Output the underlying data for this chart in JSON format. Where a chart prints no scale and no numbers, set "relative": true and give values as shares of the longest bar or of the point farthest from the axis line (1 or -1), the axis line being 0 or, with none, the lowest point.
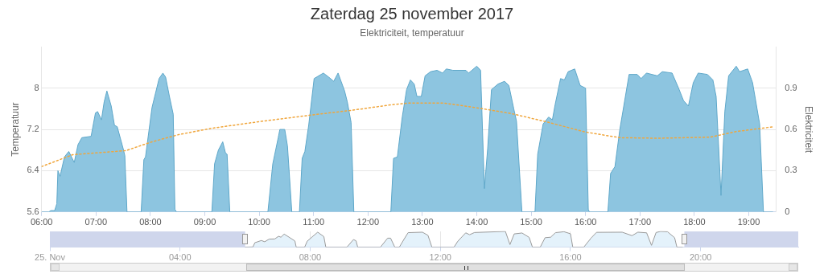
{
  "chart_data": [
    {
      "type": "area",
      "title": "Zaterdag 25 november 2017",
      "subtitle": "Elektriciteit, temperatuur",
      "ylabel": "Temperatuur",
      "y2label": "Elektriciteit",
      "xlim": [
        6,
        19.5
      ],
      "xticks": [
        {
          "value": 6,
          "label": "06:00"
        },
        {
          "value": 7,
          "label": "07:00"
        },
        {
          "value": 8,
          "label": "08:00"
        },
        {
          "value": 9,
          "label": "09:00"
        },
        {
          "value": 10,
          "label": "10:00"
        },
        {
          "value": 11,
          "label": "11:00"
        },
        {
          "value": 12,
          "label": "12:00"
        },
        {
          "value": 13,
          "label": "13:00"
        },
        {
          "value": 14,
          "label": "14:00"
        },
        {
          "value": 15,
          "label": "15:00"
        },
        {
          "value": 16,
          "label": "16:00"
        },
        {
          "value": 17,
          "label": "17:00"
        },
        {
          "value": 18,
          "label": "18:00"
        },
        {
          "value": 19,
          "label": "19:00"
        }
      ],
      "ylim": [
        5.6,
        8.8
      ],
      "yticks": [
        5.6,
        6.4,
        7.2,
        8
      ],
      "y2lim": [
        0,
        1.2
      ],
      "y2ticks": [
        0,
        0.3,
        0.6,
        0.9
      ],
      "grid": "y",
      "marker": "none",
      "series": [
        {
          "type": "area",
          "axis": "y2",
          "color": "#8dc5e0",
          "x": [
            6,
            6.13,
            6.17,
            6.24,
            6.28,
            6.3,
            6.34,
            6.42,
            6.5,
            6.6,
            6.67,
            6.74,
            6.91,
            6.99,
            7.03,
            7.1,
            7.15,
            7.2,
            7.28,
            7.34,
            7.39,
            7.5,
            7.53,
            7.57,
            7.83,
            7.88,
            7.91,
            8.03,
            8.16,
            8.23,
            8.28,
            8.35,
            8.42,
            8.45,
            8.48,
            9.13,
            9.18,
            9.25,
            9.33,
            9.38,
            9.41,
            9.46,
            10.16,
            10.25,
            10.35,
            10.38,
            10.47,
            10.52,
            10.6,
            10.74,
            10.79,
            10.84,
            10.91,
            11.01,
            11.18,
            11.28,
            11.37,
            11.45,
            11.57,
            11.62,
            11.69,
            11.74,
            12.42,
            12.47,
            12.54,
            12.63,
            12.71,
            12.78,
            12.85,
            12.9,
            12.98,
            13.05,
            13.15,
            13.27,
            13.37,
            13.44,
            13.56,
            13.8,
            13.85,
            14,
            14.07,
            14.14,
            14.2,
            14.27,
            14.39,
            14.51,
            14.59,
            14.68,
            14.73,
            14.83,
            15.07,
            15.12,
            15.22,
            15.32,
            15.39,
            15.44,
            15.54,
            15.61,
            15.68,
            15.8,
            15.9,
            16,
            16.05,
            16.07,
            16.41,
            16.46,
            16.54,
            16.63,
            16.8,
            16.95,
            17.02,
            17.12,
            17.32,
            17.41,
            17.59,
            17.71,
            17.8,
            17.89,
            17.98,
            18.07,
            18.24,
            18.34,
            18.4,
            18.49,
            18.56,
            18.63,
            18.77,
            18.83,
            18.98,
            19.07,
            19.2,
            19.27,
            19.44
          ],
          "values": [
            0,
            0,
            0.01,
            0.01,
            0.06,
            0.3,
            0.26,
            0.4,
            0.44,
            0.36,
            0.49,
            0.54,
            0.55,
            0.72,
            0.73,
            0.67,
            0.8,
            0.88,
            0.77,
            0.63,
            0.62,
            0.46,
            0.41,
            0,
            0,
            0.38,
            0.4,
            0.76,
            0.97,
            1.01,
            0.98,
            0.84,
            0.71,
            0.02,
            0,
            0,
            0.35,
            0.45,
            0.51,
            0.43,
            0.42,
            0,
            0,
            0.35,
            0.54,
            0.6,
            0.6,
            0.48,
            0,
            0,
            0.39,
            0.44,
            0.63,
            0.97,
            1.01,
            0.98,
            0.95,
            1.01,
            0.88,
            0.8,
            0.65,
            0,
            0,
            0.39,
            0.4,
            0.69,
            0.89,
            0.96,
            0.93,
            0.84,
            0.84,
            0.99,
            1.02,
            1.03,
            1.01,
            1.04,
            1.03,
            1.03,
            1.01,
            1.06,
            1.03,
            0.17,
            0.46,
            0.89,
            0.93,
            0.95,
            0.92,
            0.75,
            0.66,
            0,
            0,
            0.42,
            0.64,
            0.69,
            0.67,
            0.78,
            0.97,
            0.96,
            1.02,
            1.04,
            0.92,
            0.9,
            0.02,
            0,
            0,
            0.28,
            0.33,
            0.6,
            1,
            1,
            0.97,
            1.01,
            0.99,
            1.02,
            1.01,
            0.9,
            0.81,
            0.77,
            0.94,
            1.01,
            1,
            0.96,
            0.84,
            0.12,
            0.73,
            0.99,
            1.06,
            1.02,
            1.04,
            0.94,
            0.64,
            0,
            0
          ]
        },
        {
          "type": "line",
          "axis": "y",
          "color": "#f0a63c",
          "line_style": "dotted",
          "x": [
            6,
            6.57,
            7.55,
            8.03,
            8.52,
            9.11,
            9.99,
            10.96,
            11.69,
            12.44,
            12.72,
            12.93,
            13.41,
            14,
            14.63,
            15.27,
            16,
            16.63,
            17.32,
            18.29,
            18.77,
            19.44
          ],
          "values": [
            6.48,
            6.71,
            6.79,
            6.96,
            7.1,
            7.22,
            7.35,
            7.48,
            7.57,
            7.68,
            7.71,
            7.71,
            7.71,
            7.62,
            7.51,
            7.35,
            7.15,
            7.04,
            7.03,
            7.05,
            7.16,
            7.25
          ]
        }
      ]
    },
    {
      "type": "area",
      "relative": true,
      "tick_labels": "x",
      "grid": "x",
      "marker": "none",
      "xlim": [
        0,
        23
      ],
      "xticks": [
        {
          "value": 0,
          "label": "25. Nov"
        },
        {
          "value": 4,
          "label": "04:00"
        },
        {
          "value": 8,
          "label": "08:00"
        },
        {
          "value": 12,
          "label": "12:00"
        },
        {
          "value": 16,
          "label": "16:00"
        },
        {
          "value": 20,
          "label": "20:00"
        }
      ],
      "bands": [
        {
          "axis": "x",
          "from": 0,
          "to": 6,
          "color": "#cfd6ec"
        },
        {
          "axis": "x",
          "from": 19.5,
          "to": 23,
          "color": "#cfd6ec"
        }
      ],
      "series": [
        {
          "type": "area",
          "color": "#e4f2fb",
          "x": [
            6,
            6.24,
            6.3,
            6.5,
            6.6,
            6.74,
            6.91,
            7.03,
            7.1,
            7.2,
            7.39,
            7.53,
            7.57,
            7.83,
            7.91,
            8.23,
            8.42,
            8.48,
            9.13,
            9.33,
            9.41,
            9.46,
            10.16,
            10.38,
            10.47,
            10.6,
            10.74,
            10.91,
            11.01,
            11.45,
            11.62,
            11.74,
            12.42,
            12.54,
            12.78,
            12.9,
            13.05,
            14,
            14.14,
            14.27,
            14.51,
            14.73,
            14.83,
            15.07,
            15.22,
            15.39,
            15.54,
            15.8,
            16,
            16.07,
            16.41,
            16.63,
            16.8,
            17.59,
            17.89,
            18.07,
            18.34,
            18.49,
            18.63,
            18.77,
            18.98,
            19.2,
            19.27,
            19.44
          ],
          "values": [
            0,
            0.01,
            0.28,
            0.42,
            0.34,
            0.51,
            0.52,
            0.69,
            0.63,
            0.83,
            0.58,
            0.39,
            0,
            0,
            0.38,
            0.95,
            0.67,
            0,
            0,
            0.48,
            0.4,
            0,
            0,
            0.57,
            0.57,
            0,
            0,
            0.59,
            0.92,
            0.95,
            0.75,
            0,
            0,
            0.38,
            0.91,
            0.79,
            0.93,
            1,
            0.16,
            0.84,
            0.9,
            0.62,
            0,
            0,
            0.6,
            0.63,
            0.92,
            0.98,
            0.85,
            0,
            0,
            0.57,
            0.94,
            0.95,
            0.73,
            0.95,
            0.91,
            0.11,
            0.93,
            1,
            0.98,
            0.6,
            0,
            0
          ]
        }
      ]
    }
  ]
}
